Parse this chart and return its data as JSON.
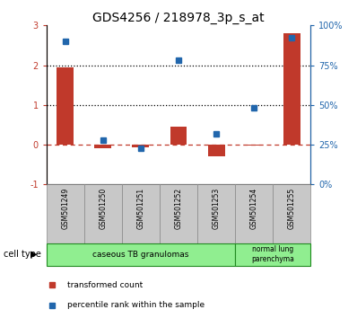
{
  "title": "GDS4256 / 218978_3p_s_at",
  "categories": [
    "GSM501249",
    "GSM501250",
    "GSM501251",
    "GSM501252",
    "GSM501253",
    "GSM501254",
    "GSM501255"
  ],
  "red_bars": [
    1.95,
    -0.08,
    -0.07,
    0.45,
    -0.3,
    -0.03,
    2.8
  ],
  "blue_squares": [
    90,
    28,
    23,
    78,
    32,
    48,
    92
  ],
  "bar_color": "#C0392B",
  "square_color": "#2166AC",
  "left_ylim": [
    -1,
    3
  ],
  "right_ylim": [
    0,
    100
  ],
  "left_yticks": [
    -1,
    0,
    1,
    2,
    3
  ],
  "right_yticks": [
    0,
    25,
    50,
    75,
    100
  ],
  "right_yticklabels": [
    "0%",
    "25%",
    "50%",
    "75%",
    "100%"
  ],
  "hline_values": [
    1,
    2
  ],
  "cell_type_label": "cell type",
  "legend_red": "transformed count",
  "legend_blue": "percentile rank within the sample",
  "title_fontsize": 10,
  "tick_fontsize": 7,
  "label_fontsize": 7,
  "green_light": "#90EE90",
  "green_dark": "#228B22",
  "gray_box": "#C8C8C8",
  "gray_border": "#888888"
}
